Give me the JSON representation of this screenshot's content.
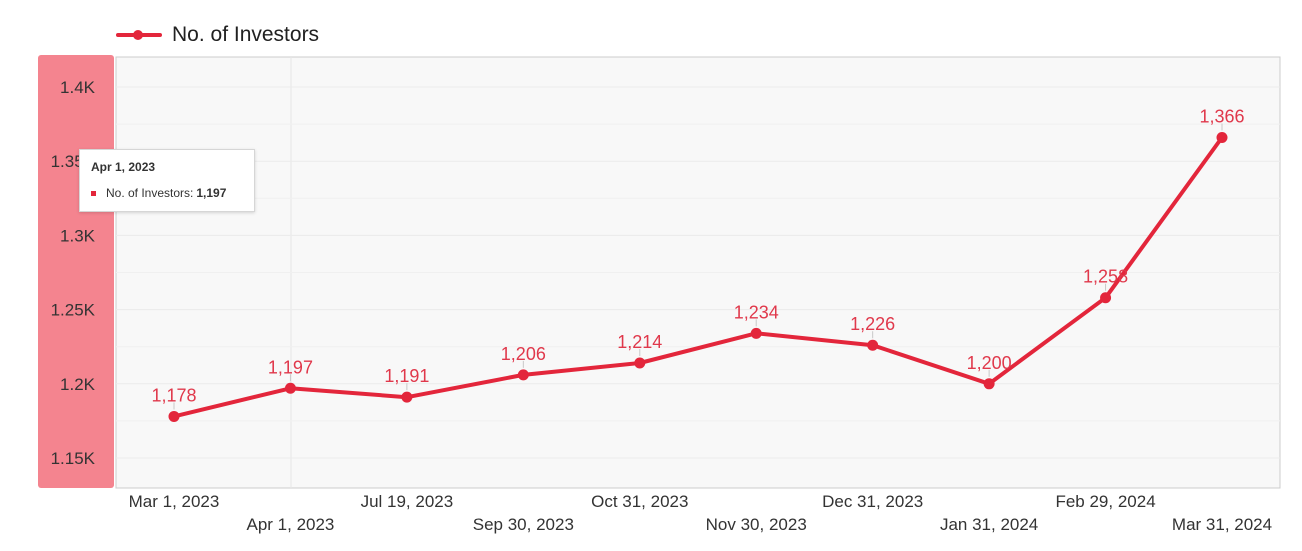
{
  "legend": {
    "series_name": "No. of Investors"
  },
  "colors": {
    "series": "#e3263b",
    "axis_highlight": "#f4848f",
    "plot_bg": "#f8f8f8"
  },
  "tooltip": {
    "date": "Apr 1, 2023",
    "series_name": "No. of Investors:",
    "value": "1,197"
  },
  "chart_data": {
    "type": "line",
    "title": "",
    "xlabel": "",
    "ylabel": "",
    "ylim": [
      1150,
      1410
    ],
    "y_ticks": [
      {
        "value": 1400,
        "label": "1.4K"
      },
      {
        "value": 1350,
        "label": "1.35K"
      },
      {
        "value": 1300,
        "label": "1.3K"
      },
      {
        "value": 1250,
        "label": "1.25K"
      },
      {
        "value": 1200,
        "label": "1.2K"
      },
      {
        "value": 1150,
        "label": "1.15K"
      }
    ],
    "categories": [
      "Mar 1, 2023",
      "Apr 1, 2023",
      "Jul 19, 2023",
      "Sep 30, 2023",
      "Oct 31, 2023",
      "Nov 30, 2023",
      "Dec 31, 2023",
      "Jan 31, 2024",
      "Feb 29, 2024",
      "Mar 31, 2024"
    ],
    "series": [
      {
        "name": "No. of Investors",
        "values": [
          1178,
          1197,
          1191,
          1206,
          1214,
          1234,
          1226,
          1200,
          1258,
          1366
        ],
        "labels": [
          "1,178",
          "1,197",
          "1,191",
          "1,206",
          "1,214",
          "1,234",
          "1,226",
          "1,200",
          "1,258",
          "1,366"
        ]
      }
    ],
    "grid": true,
    "legend_position": "top-left"
  }
}
